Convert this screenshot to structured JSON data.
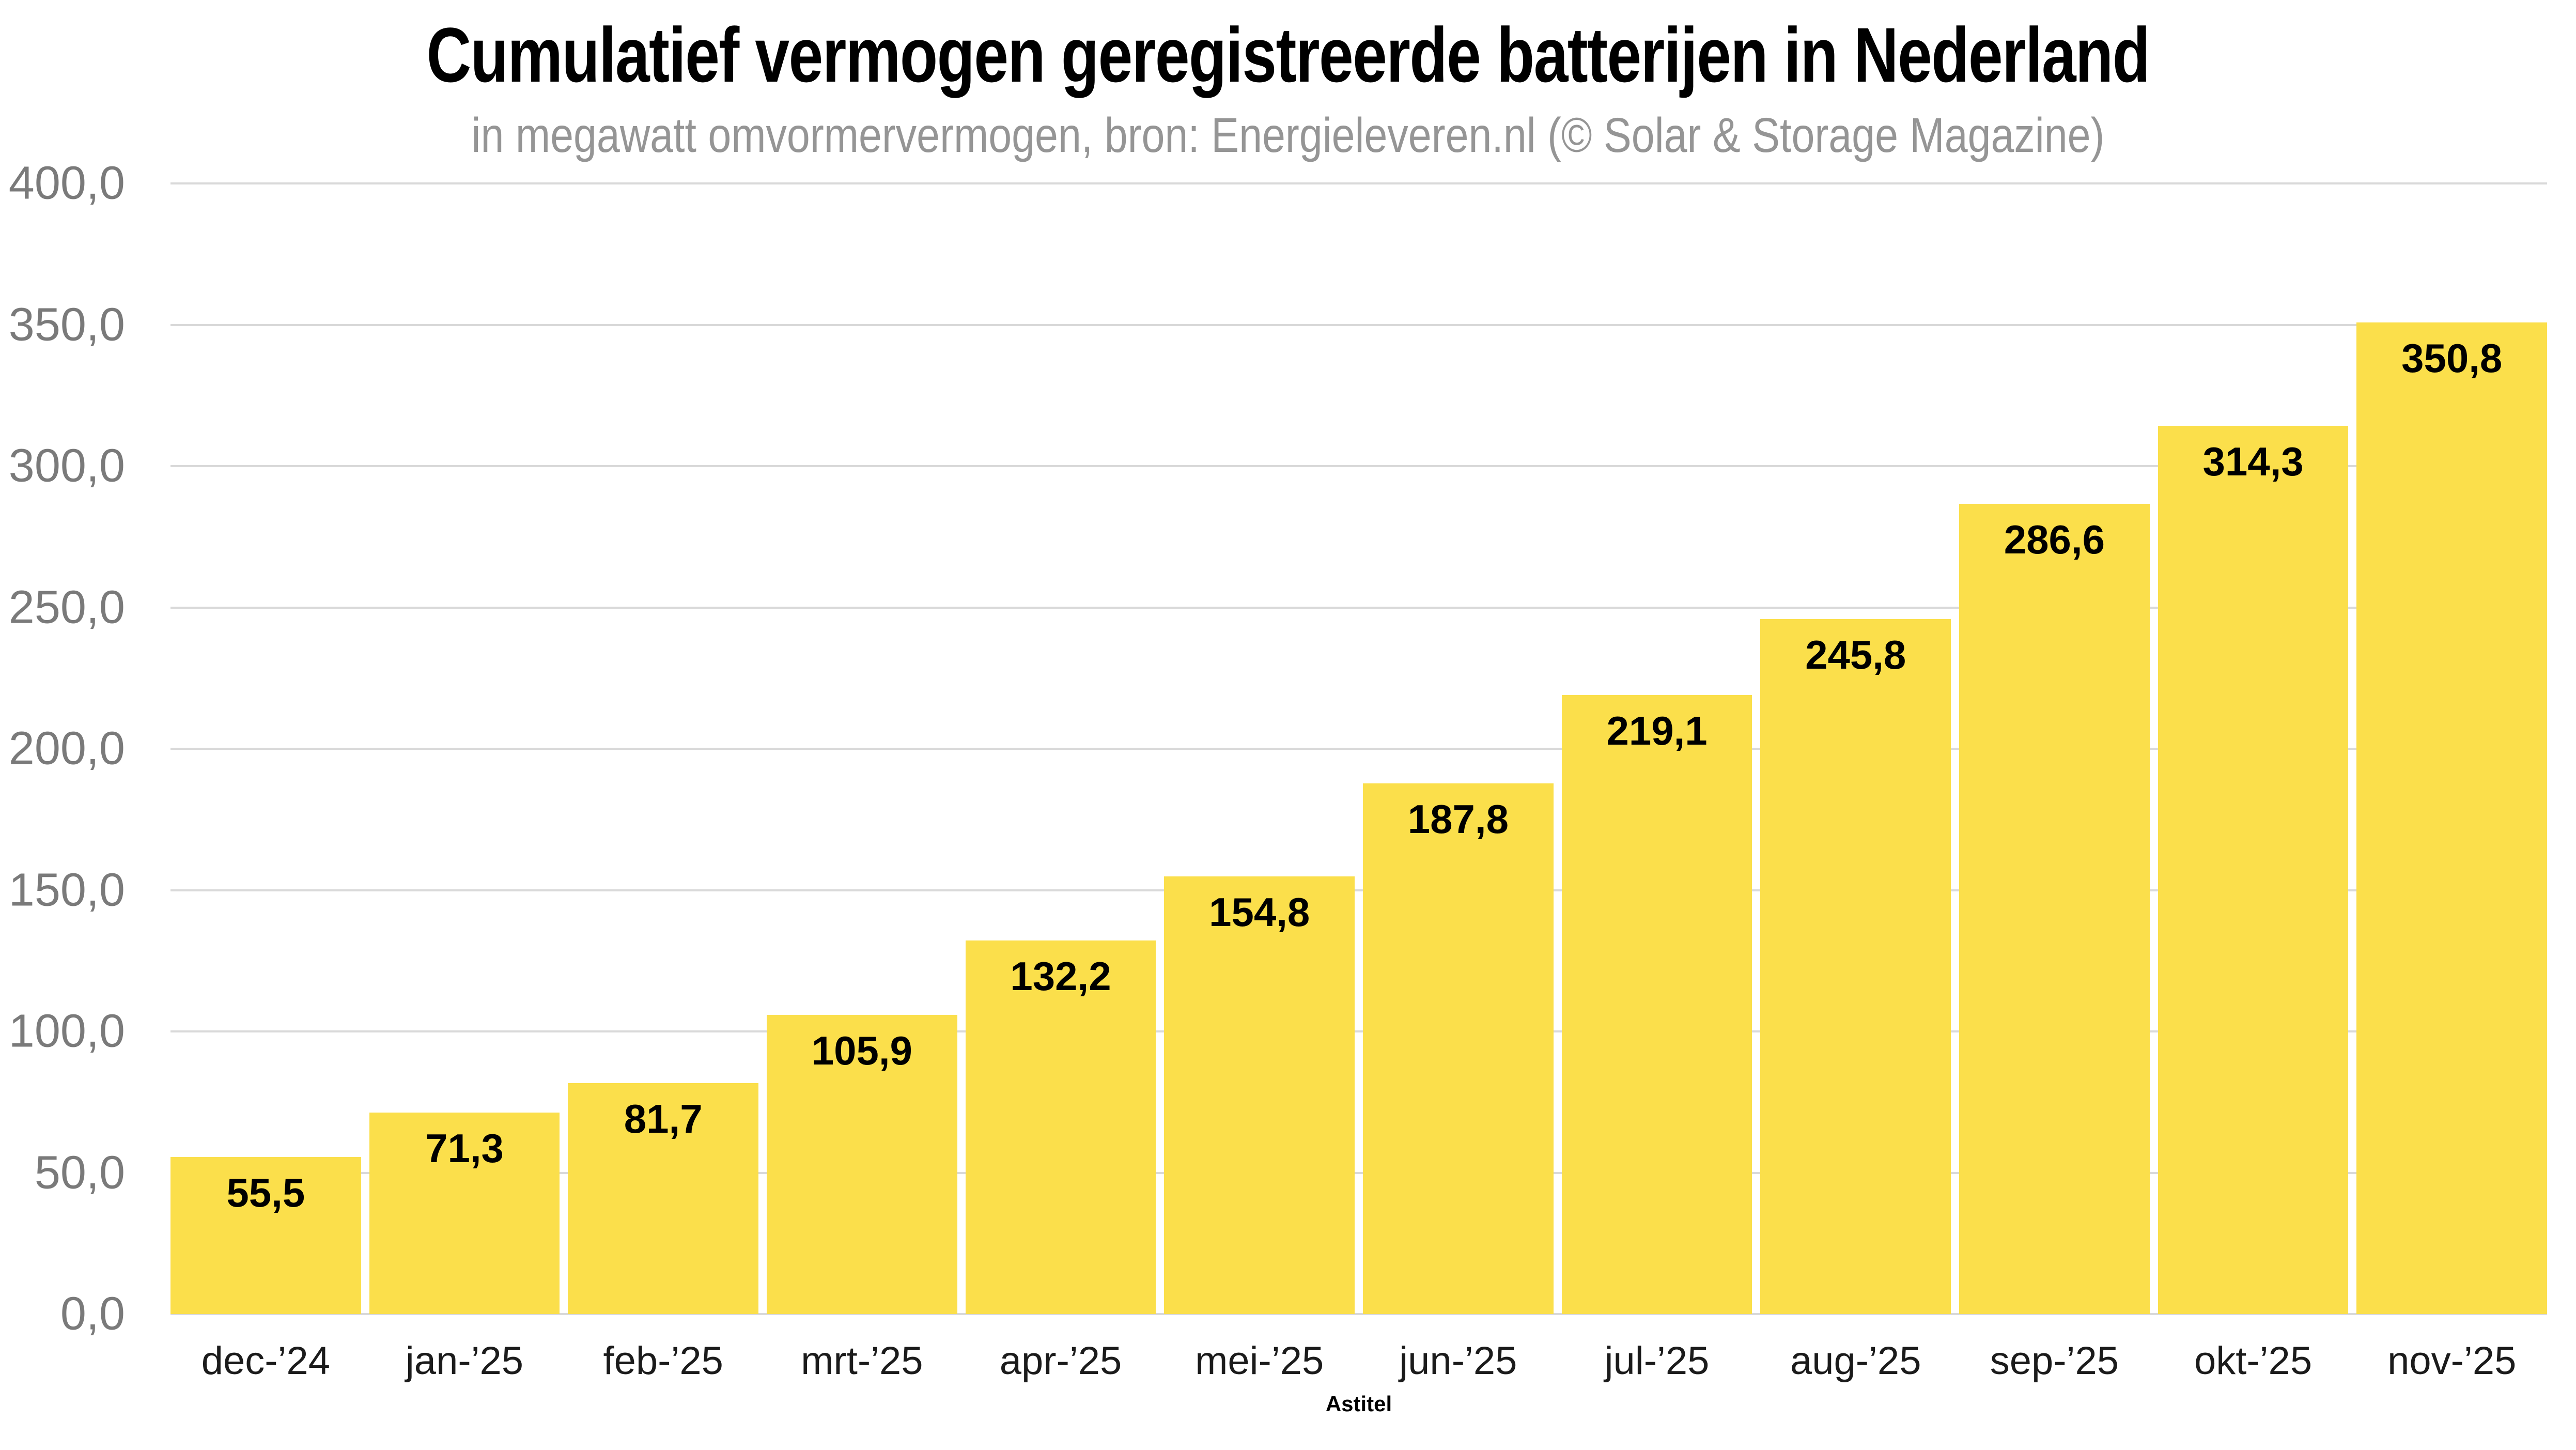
{
  "colors": {
    "bar": "#FBDF4B",
    "gridline": "#D9D9D9",
    "y_label": "#7A7A7A",
    "x_label": "#1B1B1B",
    "data_label": "#000000",
    "title": "#000000",
    "subtitle": "#959595"
  },
  "chart_data": {
    "type": "bar",
    "title": "Cumulatief vermogen geregistreerde batterijen in Nederland",
    "subtitle": "in megawatt omvormervermogen, bron: Energieleveren.nl (© Solar & Storage Magazine)",
    "xlabel": "Astitel",
    "ylabel": "",
    "categories": [
      "dec-’24",
      "jan-’25",
      "feb-’25",
      "mrt-’25",
      "apr-’25",
      "mei-’25",
      "jun-’25",
      "jul-’25",
      "aug-’25",
      "sep-’25",
      "okt-’25",
      "nov-’25"
    ],
    "values": [
      55.5,
      71.3,
      81.7,
      105.9,
      132.2,
      154.8,
      187.8,
      219.1,
      245.8,
      286.6,
      314.3,
      350.8
    ],
    "value_labels": [
      "55,5",
      "71,3",
      "81,7",
      "105,9",
      "132,2",
      "154,8",
      "187,8",
      "219,1",
      "245,8",
      "286,6",
      "314,3",
      "350,8"
    ],
    "ylim": [
      0,
      400
    ],
    "y_tick_step": 50,
    "y_ticks_bottom_to_top": [
      "0,0",
      "50,0",
      "100,0",
      "150,0",
      "200,0",
      "250,0",
      "300,0",
      "350,0",
      "400,0"
    ],
    "grid": true,
    "legend": false,
    "bar_labels_position": "inside-top"
  }
}
